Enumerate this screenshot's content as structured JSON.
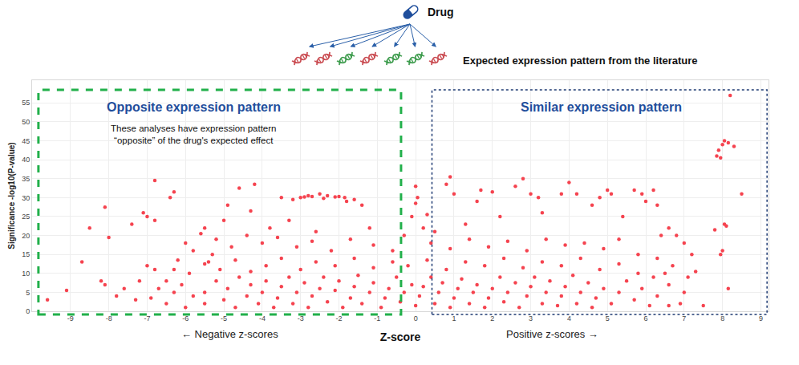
{
  "header": {
    "drug": "Drug",
    "caption": "Expected expression pattern from the literature"
  },
  "chart_data": {
    "type": "scatter",
    "x_label": "Z-score",
    "y_label": "Significance -log10(P-value)",
    "annotations": [
      "Opposite expression pattern",
      "These analyses have expression pattern\n“opposite” of the drug's expected effect",
      "Similar expression pattern",
      "← Negative z-scores",
      "Positive z-scores →"
    ],
    "color": "#f5434f",
    "marker": "circle",
    "grid": true,
    "xlim": [
      -10,
      9.2
    ],
    "ylim": [
      0,
      61
    ],
    "xticks": [
      -9,
      -8,
      -7,
      -6,
      -5,
      -4,
      -3,
      -2,
      -1,
      0,
      1,
      2,
      3,
      4,
      5,
      6,
      7,
      8,
      9
    ],
    "yticks": [
      0,
      5,
      10,
      15,
      20,
      25,
      30,
      35,
      40,
      45,
      50,
      55
    ],
    "x": [
      7.85,
      7.9,
      7.95,
      8.0,
      8.05,
      8.15,
      8.3,
      8.2,
      8.5,
      8.05,
      8.1,
      7.8,
      8.0,
      7.95,
      8.15,
      7.5,
      7.3,
      6.9,
      6.6,
      7.2,
      -3.0,
      -2.9,
      -2.8,
      -2.7,
      -2.5,
      -2.3,
      -2.1,
      -2.0,
      -1.85,
      -1.8,
      -2.4,
      -3.2,
      -3.5,
      -1.6,
      -1.4,
      -6.8,
      -6.3,
      -6.4,
      -8.1,
      -7.0,
      -7.4,
      -7.1,
      -6.8,
      -8.0,
      -8.5,
      -8.7,
      -9.1,
      -9.6,
      -8.2,
      -8.1,
      -7.6,
      -7.8,
      -7.0,
      -6.8,
      -6.9,
      -6.5,
      -5.5,
      -5.6,
      -5.0,
      -4.6,
      -4.2,
      -4.9,
      -4.3,
      -5.3,
      -6.0,
      -6.2,
      -6.5,
      -7.2,
      0,
      0.05,
      0,
      -0.1,
      0.3,
      0.2,
      -0.3,
      0.5,
      0.9,
      0.8,
      1.0,
      2.0,
      2.2,
      2.8,
      2.6,
      3.0,
      3.2,
      3.8,
      4.0,
      4.2,
      4.6,
      4.8,
      5.0,
      5.1,
      5.4,
      5.7,
      5.9,
      6.2,
      6.0,
      6.3,
      6.6,
      6.4,
      7.0,
      6.8,
      1.7,
      1.6,
      3.3,
      -3.8,
      -3.3,
      -2.6,
      -1.2,
      1.3,
      -5.8,
      -5.2,
      -4.8,
      -4.4,
      -4.0,
      -3.6,
      -3.1,
      -2.7,
      -2.2,
      -1.7,
      -1.1,
      -0.6,
      0.4,
      0.9,
      1.4,
      1.9,
      2.4,
      2.9,
      3.4,
      3.9,
      4.4,
      4.9,
      5.3,
      5.8,
      6.3,
      6.7,
      7.1,
      -6.3,
      -6.7,
      -7.3,
      -5.9,
      -5.5,
      -5.1,
      -4.7,
      -4.3,
      -3.9,
      -3.5,
      -3.0,
      -2.6,
      -2.1,
      -1.6,
      -1.1,
      -0.6,
      -0.2,
      0.3,
      0.8,
      1.3,
      1.8,
      2.3,
      2.8,
      3.3,
      3.8,
      4.3,
      4.8,
      5.3,
      5.8,
      6.2,
      6.6,
      7.0,
      -6.1,
      -5.5,
      -5.5,
      -5.2,
      -5.0,
      -4.9,
      -4.7,
      -4.6,
      -4.4,
      -4.3,
      -4.1,
      -4.0,
      -3.9,
      -3.7,
      -3.6,
      -3.5,
      -3.3,
      -3.2,
      -3.1,
      -2.9,
      -2.8,
      -2.7,
      -2.5,
      -2.4,
      -2.3,
      -2.1,
      -2.0,
      -1.9,
      -1.7,
      -1.6,
      -1.5,
      -1.4,
      -1.2,
      -1.1,
      -0.9,
      -0.8,
      -0.7,
      -0.5,
      -0.4,
      -0.3,
      -0.1,
      0,
      0.1,
      0.2,
      0.4,
      0.5,
      0.6,
      0.7,
      0.9,
      1.0,
      1.1,
      1.2,
      1.4,
      1.5,
      1.6,
      1.8,
      1.9,
      2.0,
      2.2,
      2.3,
      2.4,
      2.6,
      2.7,
      2.9,
      3.0,
      3.1,
      3.3,
      3.4,
      3.5,
      3.7,
      3.8,
      3.9,
      4.1,
      4.2,
      4.3,
      4.5,
      4.6,
      4.7,
      4.9,
      5.1,
      5.3,
      5.5,
      5.7,
      5.9,
      6.1,
      6.3,
      6.5,
      -5.8,
      -6.0,
      -6.3,
      -5.4
    ],
    "values": [
      41,
      42.5,
      40.5,
      44,
      45,
      44.5,
      43.5,
      57,
      31,
      23,
      22.5,
      21.5,
      16,
      15,
      6,
      1.5,
      10.5,
      2,
      1.5,
      15,
      30,
      30.2,
      30.5,
      30.3,
      31,
      30.5,
      30.2,
      30.3,
      30,
      29,
      29.8,
      29.5,
      30,
      29.5,
      28,
      34.5,
      31.5,
      30,
      27.5,
      25,
      23,
      26,
      24,
      19.5,
      22,
      13,
      5.5,
      3,
      8,
      7,
      6,
      4,
      12,
      11,
      3.5,
      2,
      22,
      20.5,
      24,
      32.5,
      33.5,
      28,
      26.5,
      15,
      18,
      13.5,
      8,
      8,
      33,
      30,
      28.5,
      25,
      25.5,
      22,
      20,
      21,
      35.5,
      33.5,
      31,
      31.5,
      25,
      35,
      33,
      31,
      30,
      31,
      34,
      31,
      28,
      30,
      32,
      31,
      25,
      32,
      31,
      32,
      29,
      28,
      22,
      20,
      18,
      20,
      32,
      29,
      26,
      22,
      24,
      21,
      22,
      23,
      16,
      19,
      17,
      20,
      18,
      19.5,
      17,
      18.5,
      16,
      19,
      17.5,
      16,
      18,
      16.5,
      19,
      17,
      18.5,
      16,
      19,
      17.5,
      18,
      16.5,
      19,
      15,
      14,
      12,
      9,
      11,
      6,
      3,
      10,
      12.5,
      11,
      13.5,
      10.5,
      12,
      14,
      11,
      13,
      12,
      14,
      11.5,
      13,
      12,
      13.5,
      11,
      13,
      12,
      14,
      11.5,
      13,
      12,
      14,
      11,
      12.5,
      10,
      9,
      7,
      5,
      7,
      2,
      5,
      8,
      3,
      6,
      1,
      9,
      4,
      7,
      2,
      5,
      8,
      1,
      3.5,
      6.5,
      9,
      2,
      5,
      7.5,
      1,
      4,
      6,
      9,
      2.5,
      5.5,
      8,
      1,
      3.5,
      6.5,
      9.5,
      2,
      5,
      7.5,
      1,
      3.5,
      6,
      9,
      2.5,
      5,
      7,
      1.5,
      4,
      6.5,
      9,
      2,
      5,
      7.5,
      1,
      3.5,
      6,
      8.5,
      2,
      5,
      7,
      1,
      3.5,
      6,
      9,
      2.5,
      5,
      7.5,
      1,
      4,
      6.5,
      9,
      2,
      5,
      8,
      1.5,
      4,
      6.5,
      9.5,
      2,
      5,
      7.5,
      1,
      3.5,
      6,
      2,
      5,
      8,
      3,
      6,
      1.5,
      4,
      10,
      4,
      1,
      5,
      13
    ]
  }
}
